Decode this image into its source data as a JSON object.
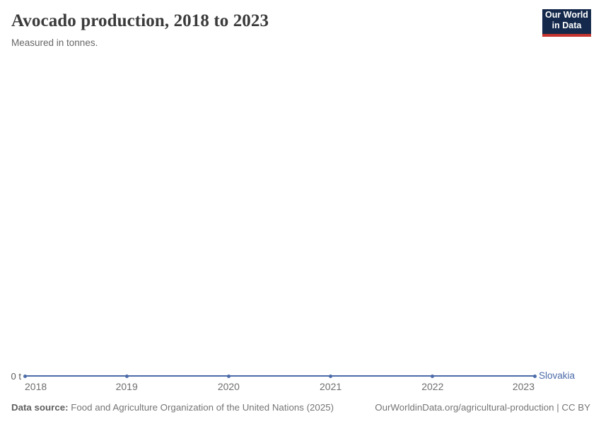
{
  "header": {
    "title": "Avocado production, 2018 to 2023",
    "subtitle": "Measured in tonnes."
  },
  "logo": {
    "line1": "Our World",
    "line2": "in Data",
    "bg_color": "#14294b",
    "accent_color": "#c5342e"
  },
  "chart_data": {
    "type": "line",
    "title": "Avocado production, 2018 to 2023",
    "subtitle": "Measured in tonnes.",
    "x": [
      2018,
      2019,
      2020,
      2021,
      2022,
      2023
    ],
    "series": [
      {
        "name": "Slovakia",
        "values": [
          0,
          0,
          0,
          0,
          0,
          0
        ],
        "color": "#4c6ba9"
      }
    ],
    "xlabel": "",
    "ylabel": "",
    "unit": "tonnes",
    "ylim": [
      0,
      0
    ],
    "zero_label": "0 t",
    "grid": false,
    "legend_position": "right-of-line-end"
  },
  "footer": {
    "source_label": "Data source:",
    "source_text": " Food and Agriculture Organization of the United Nations (2025)",
    "link_text": "OurWorldinData.org/agricultural-production | CC BY"
  }
}
